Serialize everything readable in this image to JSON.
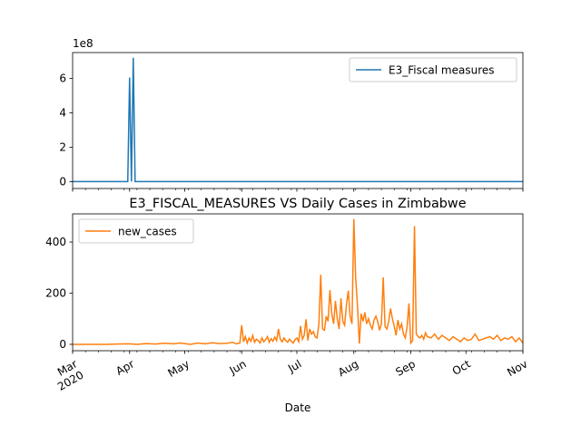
{
  "chart_data": [
    {
      "type": "line",
      "title": "",
      "xlabel": "",
      "ylabel": "",
      "y_offset_label": "1e8",
      "x_range": [
        "2020-03-01",
        "2020-11-01"
      ],
      "ylim": [
        -0.4,
        7.5
      ],
      "y_ticks": [
        0,
        2,
        4,
        6
      ],
      "y_tick_labels": [
        "0",
        "2",
        "4",
        "6"
      ],
      "grid": false,
      "legend_position": "top-right",
      "series": [
        {
          "name": "E3_Fiscal measures",
          "color": "#1f77b4",
          "x": [
            "2020-03-01",
            "2020-03-31",
            "2020-04-01",
            "2020-04-02",
            "2020-04-03",
            "2020-04-04",
            "2020-04-05",
            "2020-04-06",
            "2020-11-01"
          ],
          "y": [
            0,
            0,
            6.05,
            0,
            7.2,
            0,
            0,
            0,
            0
          ]
        }
      ]
    },
    {
      "type": "line",
      "title": "E3_FISCAL_MEASURES VS Daily Cases in Zimbabwe",
      "xlabel": "Date",
      "ylabel": "",
      "x_range": [
        "2020-03-01",
        "2020-11-01"
      ],
      "ylim": [
        -25,
        510
      ],
      "y_ticks": [
        0,
        200,
        400
      ],
      "y_tick_labels": [
        "0",
        "200",
        "400"
      ],
      "x_tick_labels": [
        "Mar\n2020",
        "Apr",
        "May",
        "Jun",
        "Jul",
        "Aug",
        "Sep",
        "Oct",
        "Nov"
      ],
      "grid": false,
      "legend_position": "top-left",
      "series": [
        {
          "name": "new_cases",
          "color": "#ff7f0e",
          "x": [
            "2020-03-01",
            "2020-03-20",
            "2020-03-25",
            "2020-04-01",
            "2020-04-05",
            "2020-04-10",
            "2020-04-15",
            "2020-04-20",
            "2020-04-25",
            "2020-04-28",
            "2020-05-01",
            "2020-05-04",
            "2020-05-08",
            "2020-05-12",
            "2020-05-16",
            "2020-05-20",
            "2020-05-24",
            "2020-05-27",
            "2020-05-29",
            "2020-05-31",
            "2020-06-01",
            "2020-06-02",
            "2020-06-03",
            "2020-06-04",
            "2020-06-05",
            "2020-06-06",
            "2020-06-07",
            "2020-06-08",
            "2020-06-09",
            "2020-06-10",
            "2020-06-11",
            "2020-06-12",
            "2020-06-13",
            "2020-06-14",
            "2020-06-15",
            "2020-06-16",
            "2020-06-17",
            "2020-06-18",
            "2020-06-19",
            "2020-06-20",
            "2020-06-21",
            "2020-06-22",
            "2020-06-23",
            "2020-06-24",
            "2020-06-25",
            "2020-06-26",
            "2020-06-27",
            "2020-06-28",
            "2020-06-29",
            "2020-06-30",
            "2020-07-01",
            "2020-07-02",
            "2020-07-03",
            "2020-07-04",
            "2020-07-05",
            "2020-07-06",
            "2020-07-07",
            "2020-07-08",
            "2020-07-09",
            "2020-07-10",
            "2020-07-11",
            "2020-07-12",
            "2020-07-13",
            "2020-07-14",
            "2020-07-15",
            "2020-07-16",
            "2020-07-17",
            "2020-07-18",
            "2020-07-19",
            "2020-07-20",
            "2020-07-21",
            "2020-07-22",
            "2020-07-23",
            "2020-07-24",
            "2020-07-25",
            "2020-07-26",
            "2020-07-27",
            "2020-07-28",
            "2020-07-29",
            "2020-07-30",
            "2020-07-31",
            "2020-08-01",
            "2020-08-02",
            "2020-08-03",
            "2020-08-04",
            "2020-08-05",
            "2020-08-06",
            "2020-08-07",
            "2020-08-08",
            "2020-08-09",
            "2020-08-10",
            "2020-08-11",
            "2020-08-12",
            "2020-08-13",
            "2020-08-14",
            "2020-08-15",
            "2020-08-16",
            "2020-08-17",
            "2020-08-18",
            "2020-08-19",
            "2020-08-20",
            "2020-08-21",
            "2020-08-22",
            "2020-08-23",
            "2020-08-24",
            "2020-08-25",
            "2020-08-26",
            "2020-08-27",
            "2020-08-28",
            "2020-08-29",
            "2020-08-30",
            "2020-08-31",
            "2020-09-01",
            "2020-09-02",
            "2020-09-03",
            "2020-09-04",
            "2020-09-05",
            "2020-09-06",
            "2020-09-07",
            "2020-09-08",
            "2020-09-09",
            "2020-09-10",
            "2020-09-12",
            "2020-09-14",
            "2020-09-16",
            "2020-09-18",
            "2020-09-20",
            "2020-09-22",
            "2020-09-24",
            "2020-09-26",
            "2020-09-28",
            "2020-09-30",
            "2020-10-02",
            "2020-10-04",
            "2020-10-06",
            "2020-10-08",
            "2020-10-10",
            "2020-10-12",
            "2020-10-14",
            "2020-10-16",
            "2020-10-18",
            "2020-10-20",
            "2020-10-22",
            "2020-10-24",
            "2020-10-26",
            "2020-10-28",
            "2020-10-30",
            "2020-11-01"
          ],
          "y": [
            0,
            0,
            1,
            2,
            0,
            3,
            1,
            4,
            2,
            5,
            3,
            0,
            5,
            2,
            6,
            3,
            4,
            8,
            2,
            5,
            75,
            10,
            30,
            5,
            25,
            12,
            35,
            8,
            20,
            15,
            5,
            25,
            10,
            18,
            30,
            8,
            22,
            12,
            28,
            15,
            60,
            20,
            10,
            25,
            15,
            8,
            20,
            12,
            5,
            18,
            25,
            10,
            72,
            20,
            35,
            98,
            15,
            60,
            40,
            50,
            30,
            25,
            80,
            272,
            60,
            55,
            110,
            90,
            212,
            120,
            80,
            170,
            100,
            60,
            180,
            90,
            75,
            155,
            210,
            110,
            80,
            490,
            260,
            150,
            3,
            120,
            90,
            125,
            80,
            100,
            75,
            60,
            95,
            110,
            90,
            55,
            80,
            262,
            70,
            60,
            90,
            140,
            100,
            70,
            35,
            95,
            60,
            80,
            40,
            25,
            70,
            160,
            5,
            15,
            462,
            40,
            30,
            25,
            35,
            20,
            45,
            30,
            25,
            40,
            20,
            35,
            25,
            15,
            30,
            20,
            10,
            25,
            15,
            20,
            40,
            15,
            20,
            25,
            30,
            20,
            35,
            15,
            25,
            20,
            30,
            10,
            25,
            5
          ]
        }
      ]
    }
  ]
}
